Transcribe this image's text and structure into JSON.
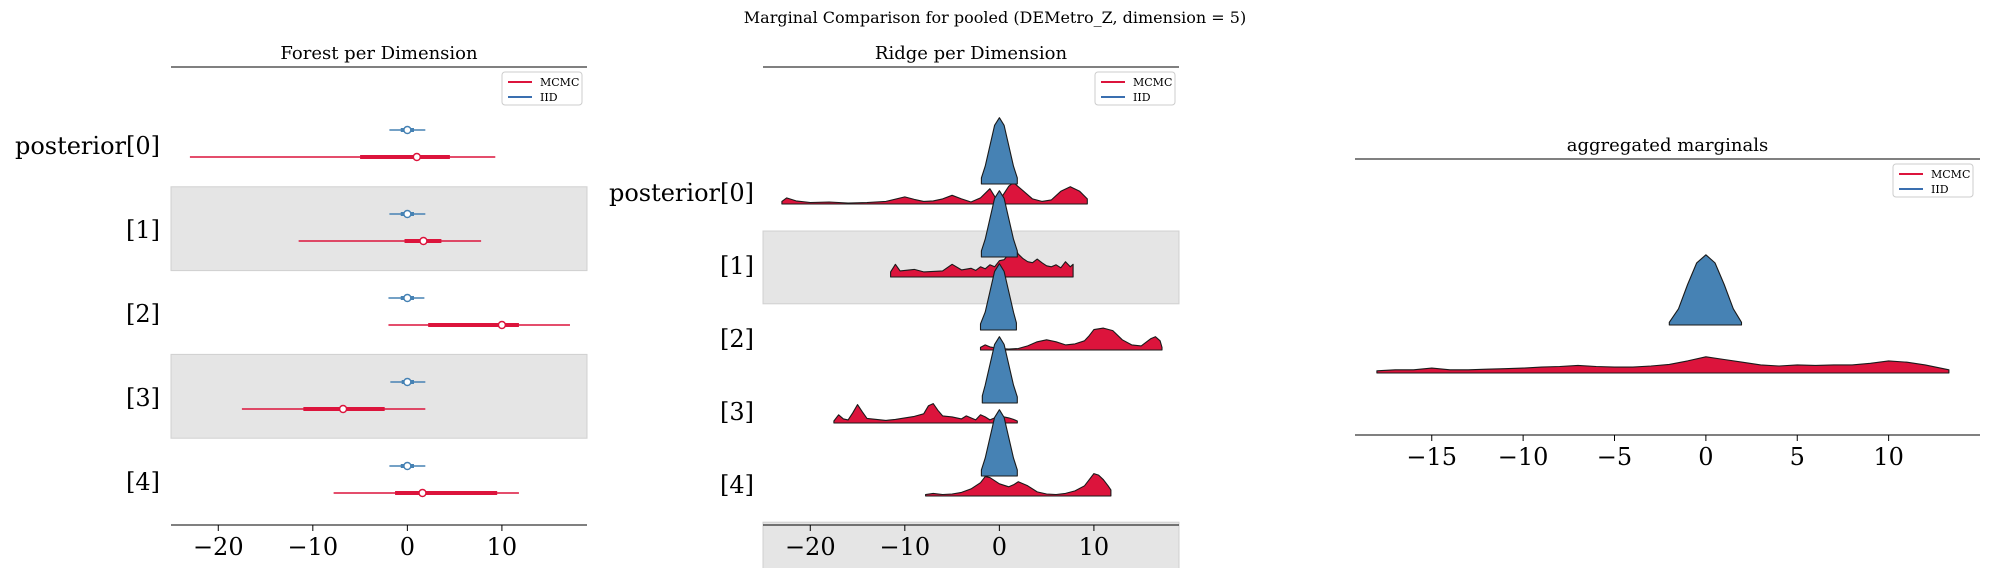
{
  "suptitle": "Marginal Comparison for pooled (DEMetro_Z, dimension = 5)",
  "colors": {
    "mcmc": "#dc143c",
    "iid": "#4682b4",
    "band": "#e5e5e5",
    "iid_legend": "#3a6fb0"
  },
  "legend": {
    "mcmc": "MCMC",
    "iid": "IID",
    "placement": "top-right"
  },
  "chart_data": [
    {
      "type": "forest",
      "title": "Forest per Dimension",
      "xlim": [
        -25,
        19
      ],
      "xticks": [
        -20,
        -10,
        0,
        10
      ],
      "xtick_labels": [
        "−20",
        "−10",
        "0",
        "10"
      ],
      "row_labels": [
        "posterior[0]",
        "[1]",
        "[2]",
        "[3]",
        "[4]"
      ],
      "series": [
        {
          "name": "MCMC",
          "rows": [
            {
              "min": -23,
              "q25": -5,
              "median": 1,
              "q75": 4.5,
              "max": 9.3
            },
            {
              "min": -11.5,
              "q25": -0.3,
              "median": 1.7,
              "q75": 3.6,
              "max": 7.8
            },
            {
              "min": -2,
              "q25": 2.2,
              "median": 10,
              "q75": 11.8,
              "max": 17.2
            },
            {
              "min": -17.5,
              "q25": -11,
              "median": -6.8,
              "q75": -2.4,
              "max": 1.9
            },
            {
              "min": -7.8,
              "q25": -1.3,
              "median": 1.6,
              "q75": 9.5,
              "max": 11.8
            }
          ]
        },
        {
          "name": "IID",
          "rows": [
            {
              "min": -1.9,
              "q25": -0.7,
              "median": 0,
              "q75": 0.7,
              "max": 1.9
            },
            {
              "min": -1.9,
              "q25": -0.7,
              "median": 0,
              "q75": 0.7,
              "max": 1.9
            },
            {
              "min": -2,
              "q25": -0.7,
              "median": 0,
              "q75": 0.7,
              "max": 1.8
            },
            {
              "min": -1.8,
              "q25": -0.6,
              "median": 0,
              "q75": 0.7,
              "max": 1.9
            },
            {
              "min": -1.9,
              "q25": -0.7,
              "median": 0,
              "q75": 0.7,
              "max": 1.9
            }
          ]
        }
      ]
    },
    {
      "type": "ridge",
      "title": "Ridge per Dimension",
      "xlim": [
        -25,
        19
      ],
      "xticks": [
        -20,
        -10,
        0,
        10
      ],
      "xtick_labels": [
        "−20",
        "−10",
        "0",
        "10"
      ],
      "row_labels": [
        "posterior[0]",
        "[1]",
        "[2]",
        "[3]",
        "[4]"
      ],
      "series": [
        {
          "name": "MCMC",
          "rows": [
            {
              "x": [
                -23,
                -22.5,
                -21.5,
                -20,
                -18,
                -16,
                -14,
                -12,
                -10,
                -9,
                -8,
                -7,
                -6,
                -5,
                -4,
                -3,
                -2,
                -1,
                -0.3,
                0.3,
                1,
                1.5,
                2.5,
                3.5,
                4.5,
                5.5,
                6.5,
                7.5,
                8.5,
                9.3
              ],
              "y": [
                0.5,
                1.2,
                0.6,
                0.3,
                0.4,
                0.2,
                0.3,
                0.5,
                1.4,
                0.9,
                0.5,
                0.6,
                1.0,
                1.7,
                1.0,
                0.4,
                1.2,
                3.0,
                0.9,
                1.5,
                3.5,
                4.2,
                2.6,
                1.0,
                0.5,
                0.8,
                2.5,
                3.4,
                2.5,
                1.0
              ]
            },
            {
              "x": [
                -11.5,
                -11,
                -10.5,
                -9,
                -8,
                -7,
                -6,
                -5,
                -4,
                -3,
                -2.5,
                -2,
                -1.5,
                -1,
                -0.5,
                0,
                0.5,
                1,
                1.5,
                2,
                2.5,
                3,
                3.5,
                4,
                4.5,
                5,
                5.5,
                6,
                6.5,
                7,
                7.5,
                7.8
              ],
              "y": [
                1.0,
                2.5,
                1.2,
                1.5,
                1.0,
                1.1,
                1.2,
                2.5,
                1.4,
                1.7,
                1.3,
                2.0,
                1.6,
                2.4,
                2.0,
                3.2,
                3.4,
                4.5,
                6.3,
                4.5,
                3.6,
                3.0,
                2.8,
                3.5,
                2.8,
                2.2,
                2.0,
                2.4,
                1.8,
                3.0,
                2.0,
                2.5
              ]
            },
            {
              "x": [
                -2,
                -1.5,
                -1,
                0,
                1,
                2,
                3,
                4,
                5,
                6,
                7,
                8,
                9,
                9.5,
                10,
                11,
                12,
                13,
                14,
                15,
                16,
                16.5,
                17,
                17.2
              ],
              "y": [
                0.5,
                1.0,
                0.6,
                0.3,
                0.2,
                0.3,
                0.8,
                1.6,
                2.0,
                1.6,
                1.0,
                1.2,
                1.8,
                2.8,
                4.0,
                4.3,
                3.8,
                2.0,
                1.0,
                0.8,
                2.2,
                2.6,
                1.8,
                0.5
              ]
            },
            {
              "x": [
                -17.5,
                -17,
                -16.5,
                -16,
                -15.5,
                -15,
                -14.5,
                -14,
                -13,
                -12,
                -11,
                -10,
                -9,
                -8,
                -7.5,
                -7,
                -6.5,
                -6,
                -5,
                -4,
                -3.5,
                -3,
                -2.5,
                -2,
                -1.5,
                -1,
                0,
                1,
                1.5,
                1.9
              ],
              "y": [
                0.4,
                1.6,
                0.8,
                0.6,
                2.0,
                3.6,
                2.2,
                0.9,
                0.7,
                0.5,
                0.7,
                1.0,
                1.3,
                1.8,
                3.4,
                3.8,
                2.5,
                1.4,
                1.2,
                0.8,
                1.4,
                1.0,
                0.6,
                1.6,
                1.2,
                0.6,
                1.4,
                1.0,
                0.7,
                0.4
              ]
            },
            {
              "x": [
                -7.8,
                -7,
                -6,
                -5,
                -4,
                -3,
                -2,
                -1.5,
                -1,
                0,
                1,
                1.5,
                2,
                3,
                4,
                5,
                6,
                7,
                8,
                9,
                9.5,
                10,
                10.5,
                11,
                11.5,
                11.8
              ],
              "y": [
                0.3,
                0.5,
                0.3,
                0.4,
                0.7,
                1.4,
                2.6,
                3.8,
                3.6,
                2.4,
                1.8,
                2.2,
                2.8,
                2.0,
                0.8,
                0.4,
                0.3,
                0.5,
                1.0,
                2.0,
                3.2,
                4.4,
                4.1,
                3.2,
                2.0,
                1.2
              ]
            }
          ]
        },
        {
          "name": "IID",
          "rows": [
            {
              "x": [
                -1.9,
                -1.5,
                -1,
                -0.5,
                0,
                0.5,
                1,
                1.5,
                1.9
              ],
              "y": [
                1.2,
                3.5,
                7.5,
                11.5,
                13,
                11.5,
                7.5,
                3.5,
                1.2
              ]
            },
            {
              "x": [
                -1.9,
                -1.5,
                -1,
                -0.5,
                0,
                0.5,
                1,
                1.5,
                1.9
              ],
              "y": [
                1.2,
                3.5,
                7.5,
                11.5,
                13,
                11.5,
                7.5,
                3.5,
                1.2
              ]
            },
            {
              "x": [
                -2,
                -1.5,
                -1,
                -0.5,
                0,
                0.5,
                1,
                1.5,
                1.8
              ],
              "y": [
                1.2,
                3.5,
                7.5,
                11.5,
                13,
                11.5,
                7.5,
                3.5,
                1.4
              ]
            },
            {
              "x": [
                -1.8,
                -1.5,
                -1,
                -0.5,
                0,
                0.5,
                1,
                1.5,
                1.9
              ],
              "y": [
                1.4,
                3.5,
                7.5,
                11.5,
                13,
                11.5,
                7.5,
                3.5,
                1.2
              ]
            },
            {
              "x": [
                -1.9,
                -1.5,
                -1,
                -0.5,
                0,
                0.5,
                1,
                1.5,
                1.9
              ],
              "y": [
                1.2,
                3.5,
                7.5,
                11.5,
                13,
                11.5,
                7.5,
                3.5,
                1.2
              ]
            }
          ]
        }
      ]
    },
    {
      "type": "area",
      "title": "aggregated marginals",
      "xlim": [
        -19.2,
        15
      ],
      "xticks": [
        -15,
        -10,
        -5,
        0,
        5,
        10
      ],
      "xtick_labels": [
        "−15",
        "−10",
        "−5",
        "0",
        "5",
        "10"
      ],
      "series": [
        {
          "name": "MCMC",
          "x": [
            -18,
            -17,
            -16,
            -15,
            -14,
            -13,
            -12,
            -11,
            -10,
            -9,
            -8,
            -7,
            -6,
            -5,
            -4,
            -3,
            -2,
            -1,
            0,
            1,
            2,
            3,
            4,
            5,
            6,
            7,
            8,
            9,
            10,
            11,
            12,
            13.3
          ],
          "y": [
            0.008,
            0.012,
            0.012,
            0.018,
            0.012,
            0.012,
            0.014,
            0.016,
            0.018,
            0.022,
            0.024,
            0.028,
            0.024,
            0.022,
            0.022,
            0.026,
            0.032,
            0.045,
            0.06,
            0.05,
            0.04,
            0.03,
            0.026,
            0.03,
            0.028,
            0.03,
            0.03,
            0.036,
            0.045,
            0.04,
            0.03,
            0.012
          ]
        },
        {
          "name": "IID",
          "x": [
            -2,
            -1.5,
            -1,
            -0.5,
            0,
            0.5,
            1,
            1.5,
            1.95
          ],
          "y": [
            0.01,
            0.06,
            0.15,
            0.23,
            0.26,
            0.23,
            0.15,
            0.06,
            0.01
          ]
        }
      ]
    }
  ]
}
